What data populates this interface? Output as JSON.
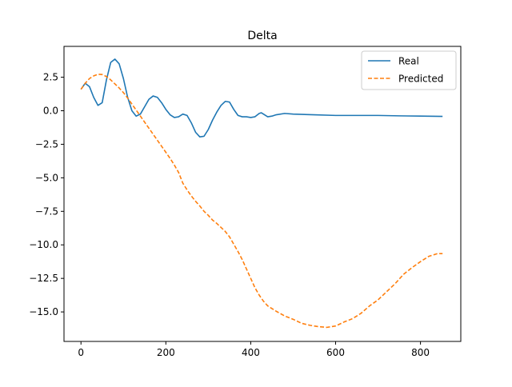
{
  "chart_data": {
    "type": "line",
    "title": "Delta",
    "xlabel": "",
    "ylabel": "",
    "xlim": [
      -40,
      895
    ],
    "ylim": [
      -17.2,
      4.8
    ],
    "xticks": [
      0,
      200,
      400,
      600,
      800
    ],
    "xtick_labels": [
      "0",
      "200",
      "400",
      "600",
      "800"
    ],
    "yticks": [
      2.5,
      0.0,
      -2.5,
      -5.0,
      -7.5,
      -10.0,
      -12.5,
      -15.0
    ],
    "ytick_labels": [
      "2.5",
      "0.0",
      "−2.5",
      "−5.0",
      "−7.5",
      "−10.0",
      "−12.5",
      "−15.0"
    ],
    "grid": false,
    "legend_position": "upper-right",
    "series": [
      {
        "name": "Real",
        "color": "#1f77b4",
        "style": "solid",
        "points": [
          [
            0,
            1.6
          ],
          [
            10,
            2.05
          ],
          [
            20,
            1.8
          ],
          [
            30,
            1.0
          ],
          [
            40,
            0.4
          ],
          [
            50,
            0.6
          ],
          [
            60,
            2.3
          ],
          [
            70,
            3.6
          ],
          [
            80,
            3.85
          ],
          [
            90,
            3.5
          ],
          [
            100,
            2.4
          ],
          [
            110,
            1.0
          ],
          [
            120,
            0.0
          ],
          [
            130,
            -0.4
          ],
          [
            140,
            -0.25
          ],
          [
            150,
            0.3
          ],
          [
            160,
            0.85
          ],
          [
            170,
            1.1
          ],
          [
            180,
            1.0
          ],
          [
            190,
            0.6
          ],
          [
            200,
            0.1
          ],
          [
            210,
            -0.3
          ],
          [
            220,
            -0.5
          ],
          [
            230,
            -0.45
          ],
          [
            240,
            -0.25
          ],
          [
            250,
            -0.35
          ],
          [
            260,
            -0.9
          ],
          [
            270,
            -1.6
          ],
          [
            280,
            -1.95
          ],
          [
            290,
            -1.9
          ],
          [
            300,
            -1.4
          ],
          [
            310,
            -0.7
          ],
          [
            320,
            -0.1
          ],
          [
            330,
            0.4
          ],
          [
            340,
            0.7
          ],
          [
            350,
            0.65
          ],
          [
            360,
            0.1
          ],
          [
            370,
            -0.35
          ],
          [
            380,
            -0.45
          ],
          [
            390,
            -0.45
          ],
          [
            400,
            -0.5
          ],
          [
            410,
            -0.45
          ],
          [
            420,
            -0.2
          ],
          [
            425,
            -0.15
          ],
          [
            430,
            -0.25
          ],
          [
            440,
            -0.45
          ],
          [
            450,
            -0.4
          ],
          [
            460,
            -0.3
          ],
          [
            480,
            -0.2
          ],
          [
            500,
            -0.25
          ],
          [
            550,
            -0.3
          ],
          [
            600,
            -0.35
          ],
          [
            650,
            -0.35
          ],
          [
            700,
            -0.35
          ],
          [
            750,
            -0.38
          ],
          [
            800,
            -0.4
          ],
          [
            852,
            -0.42
          ]
        ]
      },
      {
        "name": "Predicted",
        "color": "#ff7f0e",
        "style": "dashed",
        "points": [
          [
            0,
            1.6
          ],
          [
            10,
            2.05
          ],
          [
            20,
            2.4
          ],
          [
            30,
            2.6
          ],
          [
            40,
            2.72
          ],
          [
            50,
            2.7
          ],
          [
            60,
            2.55
          ],
          [
            70,
            2.3
          ],
          [
            80,
            2.0
          ],
          [
            90,
            1.7
          ],
          [
            100,
            1.35
          ],
          [
            110,
            0.95
          ],
          [
            120,
            0.5
          ],
          [
            130,
            0.05
          ],
          [
            140,
            -0.4
          ],
          [
            150,
            -0.85
          ],
          [
            160,
            -1.3
          ],
          [
            170,
            -1.75
          ],
          [
            180,
            -2.2
          ],
          [
            190,
            -2.65
          ],
          [
            200,
            -3.1
          ],
          [
            210,
            -3.55
          ],
          [
            220,
            -4.05
          ],
          [
            230,
            -4.6
          ],
          [
            240,
            -5.4
          ],
          [
            250,
            -5.9
          ],
          [
            260,
            -6.35
          ],
          [
            270,
            -6.75
          ],
          [
            280,
            -7.1
          ],
          [
            290,
            -7.5
          ],
          [
            300,
            -7.8
          ],
          [
            310,
            -8.15
          ],
          [
            320,
            -8.4
          ],
          [
            330,
            -8.7
          ],
          [
            340,
            -9.0
          ],
          [
            350,
            -9.4
          ],
          [
            360,
            -9.95
          ],
          [
            370,
            -10.5
          ],
          [
            380,
            -11.1
          ],
          [
            390,
            -11.8
          ],
          [
            400,
            -12.5
          ],
          [
            410,
            -13.2
          ],
          [
            420,
            -13.75
          ],
          [
            430,
            -14.2
          ],
          [
            440,
            -14.55
          ],
          [
            460,
            -14.95
          ],
          [
            480,
            -15.3
          ],
          [
            500,
            -15.55
          ],
          [
            520,
            -15.85
          ],
          [
            540,
            -16.0
          ],
          [
            560,
            -16.1
          ],
          [
            580,
            -16.15
          ],
          [
            600,
            -16.05
          ],
          [
            620,
            -15.75
          ],
          [
            640,
            -15.5
          ],
          [
            660,
            -15.1
          ],
          [
            680,
            -14.55
          ],
          [
            700,
            -14.1
          ],
          [
            720,
            -13.5
          ],
          [
            740,
            -12.9
          ],
          [
            760,
            -12.2
          ],
          [
            780,
            -11.7
          ],
          [
            800,
            -11.25
          ],
          [
            820,
            -10.85
          ],
          [
            840,
            -10.65
          ],
          [
            852,
            -10.65
          ]
        ]
      }
    ]
  }
}
